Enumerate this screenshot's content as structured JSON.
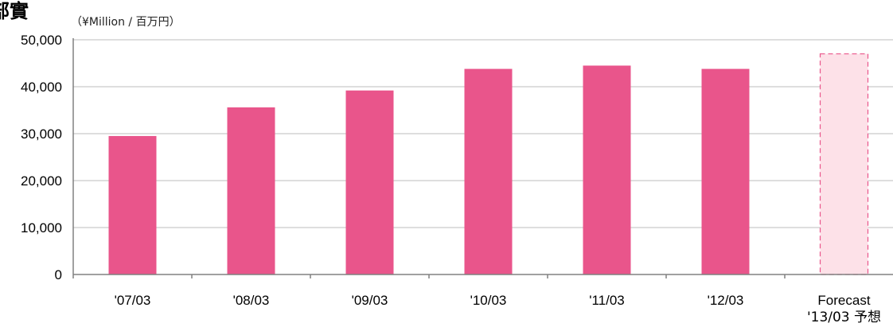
{
  "chart_data": {
    "type": "bar",
    "title": "部實",
    "unit_label": "（¥Million / 百万円）",
    "categories": [
      "'07/03",
      "'08/03",
      "'09/03",
      "'10/03",
      "'11/03",
      "'12/03",
      "Forecast\n'13/03 予想"
    ],
    "values": [
      29500,
      35600,
      39200,
      43800,
      44500,
      43800,
      47000
    ],
    "forecast_index": 6,
    "ylim": [
      0,
      50000
    ],
    "yticks": [
      "0",
      "10,000",
      "20,000",
      "30,000",
      "40,000",
      "50,000"
    ],
    "grid": true,
    "colors": {
      "bar": "#E9558B",
      "forecast_fill": "#FDE1E8",
      "forecast_stroke": "#E9558B",
      "grid": "#BDBDBD",
      "axis": "#808080"
    }
  }
}
